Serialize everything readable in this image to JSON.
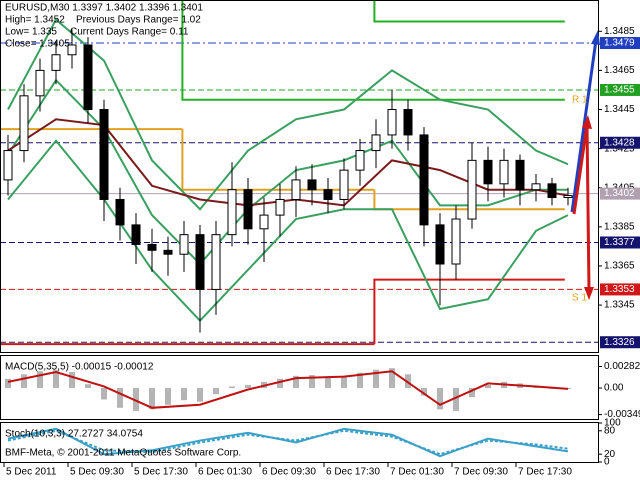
{
  "chart_data": {
    "type": "candlestick",
    "title": "EURUSD,M30  1.3397 1.3402 1.3396 1.3401",
    "info": [
      "High= 1.3452",
      "Previous Days Range= 1.02",
      "Low= 1.335",
      "Current Days Range= 0.11",
      "Close= 1.3405"
    ],
    "xlabels": [
      {
        "value": 0,
        "label": "5 Dec 2011"
      },
      {
        "value": 4,
        "label": "5 Dec 09:30"
      },
      {
        "value": 8,
        "label": "5 Dec 17:30"
      },
      {
        "value": 12,
        "label": "6 Dec 01:30"
      },
      {
        "value": 16,
        "label": "6 Dec 09:30"
      },
      {
        "value": 20,
        "label": "6 Dec 17:30"
      },
      {
        "value": 24,
        "label": "7 Dec 01:30"
      },
      {
        "value": 28,
        "label": "7 Dec 09:30"
      },
      {
        "value": 32,
        "label": "7 Dec 17:30"
      }
    ],
    "open": [
      1.3409,
      1.3424,
      1.3452,
      1.3465,
      1.3473,
      1.3478,
      1.3445,
      1.3399,
      1.3386,
      1.3376,
      1.3373,
      1.3371,
      1.3381,
      1.3353,
      1.3381,
      1.3404,
      1.3384,
      1.3391,
      1.3399,
      1.3409,
      1.3404,
      1.3399,
      1.3414,
      1.3424,
      1.3432,
      1.3445,
      1.3432,
      1.3386,
      1.3366,
      1.3389,
      1.3419,
      1.3407,
      1.3419,
      1.3404,
      1.3407,
      1.34
    ],
    "high": [
      1.3432,
      1.3458,
      1.3471,
      1.348,
      1.3486,
      1.3482,
      1.345,
      1.3405,
      1.3392,
      1.3384,
      1.338,
      1.3388,
      1.3386,
      1.3388,
      1.3418,
      1.341,
      1.34,
      1.3407,
      1.3416,
      1.3417,
      1.341,
      1.342,
      1.343,
      1.344,
      1.3455,
      1.345,
      1.3436,
      1.3392,
      1.3396,
      1.3428,
      1.3426,
      1.3425,
      1.3422,
      1.3412,
      1.341,
      1.3405
    ],
    "low": [
      1.3401,
      1.3418,
      1.3444,
      1.3458,
      1.3466,
      1.3438,
      1.3388,
      1.3378,
      1.3366,
      1.3362,
      1.336,
      1.3362,
      1.3331,
      1.334,
      1.3375,
      1.3376,
      1.3367,
      1.338,
      1.339,
      1.3396,
      1.3392,
      1.3394,
      1.3406,
      1.3415,
      1.3425,
      1.3424,
      1.3375,
      1.3345,
      1.3358,
      1.3384,
      1.3398,
      1.34,
      1.3396,
      1.3398,
      1.3396,
      1.3396
    ],
    "close": [
      1.3424,
      1.3452,
      1.3465,
      1.3473,
      1.3478,
      1.3445,
      1.3399,
      1.3386,
      1.3376,
      1.3373,
      1.3371,
      1.3381,
      1.3353,
      1.3381,
      1.3404,
      1.3384,
      1.3391,
      1.3399,
      1.3409,
      1.3404,
      1.3399,
      1.3414,
      1.3424,
      1.3432,
      1.3445,
      1.3432,
      1.3386,
      1.3366,
      1.3389,
      1.3419,
      1.3407,
      1.3419,
      1.3404,
      1.3407,
      1.34,
      1.3401
    ],
    "bull_color": "#ffffff",
    "bear_color": "#000000",
    "ylim": [
      1.3321,
      1.3501
    ],
    "yticks": [
      1.3345,
      1.3365,
      1.3385,
      1.3405,
      1.3425,
      1.3445,
      1.3465,
      1.3485
    ],
    "line_x": [
      0,
      3,
      6,
      9,
      12,
      15,
      18,
      21,
      24,
      27,
      30,
      33,
      35
    ],
    "series": [
      {
        "color": "#3aa060",
        "values": [
          1.3445,
          1.3491,
          1.347,
          1.3419,
          1.3394,
          1.3424,
          1.344,
          1.3445,
          1.3465,
          1.345,
          1.3445,
          1.3424,
          1.3417
        ]
      },
      {
        "color": "#3aa060",
        "values": [
          1.3399,
          1.3429,
          1.3399,
          1.3363,
          1.3337,
          1.3363,
          1.3389,
          1.3394,
          1.3394,
          1.3343,
          1.3348,
          1.3383,
          1.3391
        ]
      },
      {
        "color": "#3aa060",
        "values": [
          1.3422,
          1.346,
          1.3435,
          1.3391,
          1.3366,
          1.3394,
          1.3414,
          1.3419,
          1.3429,
          1.3396,
          1.3396,
          1.3404,
          1.3404
        ]
      },
      {
        "color": "#7a1a1a",
        "values": [
          1.3424,
          1.344,
          1.3437,
          1.3406,
          1.3399,
          1.3396,
          1.3399,
          1.3396,
          1.3419,
          1.3414,
          1.3404,
          1.3404,
          1.3401
        ]
      }
    ],
    "step_edges": [
      0,
      11.4,
      23.4,
      35.3
    ],
    "steps": [
      {
        "color": "#22b022",
        "values": [
          null,
          1.345,
          1.345
        ]
      },
      {
        "color": "#22b022",
        "values": [
          null,
          null,
          1.349
        ]
      },
      {
        "color": "#e0a020",
        "values": [
          1.3435,
          1.3404,
          1.3394
        ]
      },
      {
        "color": "#d01818",
        "values": [
          1.3325,
          1.3325,
          1.3358
        ]
      }
    ],
    "levels": [
      {
        "value": 1.3479,
        "color": "#1f3fbf",
        "dash": "8 3 2 3"
      },
      {
        "value": 1.3455,
        "color": "#22a022",
        "dash": "6 3"
      },
      {
        "value": 1.3428,
        "color": "#14146e",
        "dash": "6 3"
      },
      {
        "value": 1.3402,
        "color": "#b0a0b0",
        "dash": "none"
      },
      {
        "value": 1.3377,
        "color": "#14146e",
        "dash": "6 3"
      },
      {
        "value": 1.3353,
        "color": "#d01818",
        "dash": "6 3"
      },
      {
        "value": 1.3326,
        "color": "#14146e",
        "dash": "6 3"
      }
    ],
    "annotations": [
      "R 1",
      "S 1"
    ],
    "macd": {
      "title": "MACD(5,35,5) -0.00015 -0.00012",
      "ylim": [
        -0.0042,
        0.0042
      ],
      "yticks": [
        -0.00349,
        {
          "value": 0,
          "label": "0.00"
        },
        0.00282
      ],
      "hist_color": "#b4b4b4",
      "histogram": [
        0.0012,
        0.0018,
        0.0022,
        0.0024,
        0.0021,
        0.0005,
        -0.0015,
        -0.0026,
        -0.003,
        -0.0028,
        -0.0022,
        -0.0016,
        -0.0018,
        -0.0008,
        0.0002,
        0.0004,
        0.0008,
        0.0012,
        0.0016,
        0.0017,
        0.0014,
        0.0016,
        0.002,
        0.0024,
        0.0026,
        0.0018,
        -0.001,
        -0.0028,
        -0.003,
        -0.0012,
        0.0004,
        0.0008,
        0.0006,
        0.0001,
        -0.0001,
        -0.00015
      ],
      "signal": {
        "color": "#c01010",
        "values": [
          0.0008,
          0.0021,
          0.0002,
          -0.0026,
          -0.0022,
          -0.0002,
          0.0013,
          0.0015,
          0.0022,
          -0.0022,
          0.0006,
          0.0002,
          -0.00012
        ]
      }
    },
    "stoch": {
      "title": "Stoch(10,3,3) 27.2727 34.0754",
      "ylim": [
        0,
        100
      ],
      "yticks": [
        0,
        20,
        80,
        100
      ],
      "main": {
        "color": "#3aa0c8",
        "values": [
          60,
          85,
          20,
          30,
          55,
          75,
          50,
          85,
          70,
          15,
          60,
          40,
          27.2727
        ]
      },
      "signal": {
        "color": "#3aa0c8",
        "values": [
          55,
          80,
          30,
          25,
          50,
          70,
          55,
          80,
          65,
          20,
          55,
          45,
          34.0754
        ]
      }
    },
    "footer": "BMF-Meta, © 2001-2011 MetaQuotes Software Corp."
  }
}
